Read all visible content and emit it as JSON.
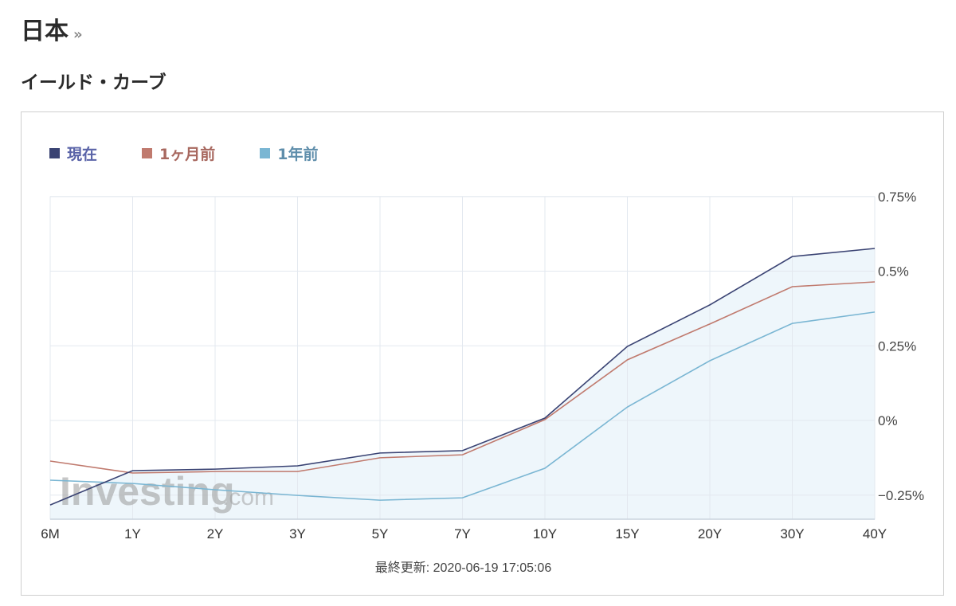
{
  "header": {
    "country": "日本",
    "country_link_icon": "double-chevron-right-icon",
    "country_link_glyph": "»",
    "section_title": "イールド・カーブ"
  },
  "legend": [
    {
      "label": "現在",
      "color": "#3a4373",
      "text_color": "#5a64a8"
    },
    {
      "label": "1ヶ月前",
      "color": "#c07a6e",
      "text_color": "#a8685f"
    },
    {
      "label": "1年前",
      "color": "#7ab6d3",
      "text_color": "#5f8eab"
    }
  ],
  "footer": {
    "updated_text": "最終更新: 2020-06-19 17:05:06"
  },
  "watermark": {
    "brand": "Investing",
    "suffix": ".com"
  },
  "chart_data": {
    "type": "line",
    "title": "イールド・カーブ",
    "categories": [
      "6M",
      "1Y",
      "2Y",
      "3Y",
      "5Y",
      "7Y",
      "10Y",
      "15Y",
      "20Y",
      "30Y",
      "40Y"
    ],
    "series": [
      {
        "name": "現在",
        "color": "#3a4373",
        "values": [
          -0.283,
          -0.168,
          -0.163,
          -0.152,
          -0.109,
          -0.101,
          0.008,
          0.248,
          0.387,
          0.549,
          0.576
        ]
      },
      {
        "name": "1ヶ月前",
        "color": "#c07a6e",
        "values": [
          -0.136,
          -0.176,
          -0.171,
          -0.171,
          -0.125,
          -0.115,
          0.003,
          0.203,
          0.323,
          0.448,
          0.464
        ]
      },
      {
        "name": "1年前",
        "color": "#7ab6d3",
        "values": [
          -0.2,
          -0.211,
          -0.232,
          -0.251,
          -0.267,
          -0.259,
          -0.16,
          0.045,
          0.2,
          0.325,
          0.363
        ]
      }
    ],
    "y_ticks": [
      0.75,
      0.5,
      0.25,
      0,
      -0.25
    ],
    "y_tick_labels": [
      "0.75%",
      "0.5%",
      "0.25%",
      "0%",
      "−0.25%"
    ],
    "xlabel": "",
    "ylabel": "",
    "ylim": [
      -0.33,
      0.75
    ],
    "y_axis_position": "right",
    "grid": true,
    "legend_position": "top-left",
    "area_fill": {
      "series": "現在",
      "color": "#eef6fb"
    }
  }
}
